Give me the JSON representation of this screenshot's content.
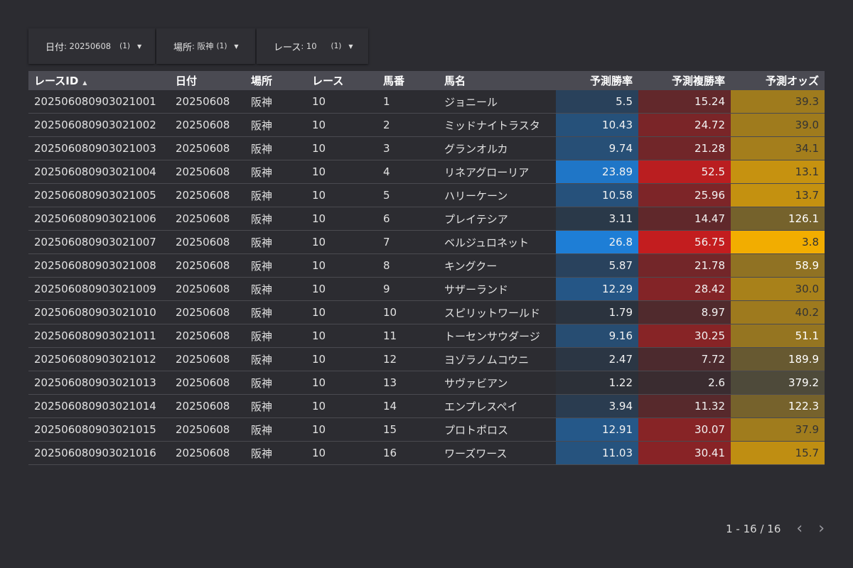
{
  "filters": [
    {
      "label": "日付",
      "value": "20250608",
      "count": "(1)"
    },
    {
      "label": "場所",
      "value": "阪神",
      "count": "(1)"
    },
    {
      "label": "レース",
      "value": "10",
      "count": "(1)"
    }
  ],
  "table": {
    "headers": [
      "レースID",
      "日付",
      "場所",
      "レース",
      "馬番",
      "馬名",
      "予測勝率",
      "予測複勝率",
      "予測オッズ"
    ],
    "sort_indicator": "▲",
    "rows": [
      {
        "id": "202506080903021001",
        "date": "20250608",
        "place": "阪神",
        "race": "10",
        "num": "1",
        "name": "ジョニール",
        "win": "5.5",
        "place_rate": "15.24",
        "odds": "39.3"
      },
      {
        "id": "202506080903021002",
        "date": "20250608",
        "place": "阪神",
        "race": "10",
        "num": "2",
        "name": "ミッドナイトラスタ",
        "win": "10.43",
        "place_rate": "24.72",
        "odds": "39.0"
      },
      {
        "id": "202506080903021003",
        "date": "20250608",
        "place": "阪神",
        "race": "10",
        "num": "3",
        "name": "グランオルカ",
        "win": "9.74",
        "place_rate": "21.28",
        "odds": "34.1"
      },
      {
        "id": "202506080903021004",
        "date": "20250608",
        "place": "阪神",
        "race": "10",
        "num": "4",
        "name": "リネアグローリア",
        "win": "23.89",
        "place_rate": "52.5",
        "odds": "13.1"
      },
      {
        "id": "202506080903021005",
        "date": "20250608",
        "place": "阪神",
        "race": "10",
        "num": "5",
        "name": "ハリーケーン",
        "win": "10.58",
        "place_rate": "25.96",
        "odds": "13.7"
      },
      {
        "id": "202506080903021006",
        "date": "20250608",
        "place": "阪神",
        "race": "10",
        "num": "6",
        "name": "プレイテシア",
        "win": "3.11",
        "place_rate": "14.47",
        "odds": "126.1"
      },
      {
        "id": "202506080903021007",
        "date": "20250608",
        "place": "阪神",
        "race": "10",
        "num": "7",
        "name": "ベルジュロネット",
        "win": "26.8",
        "place_rate": "56.75",
        "odds": "3.8"
      },
      {
        "id": "202506080903021008",
        "date": "20250608",
        "place": "阪神",
        "race": "10",
        "num": "8",
        "name": "キングクー",
        "win": "5.87",
        "place_rate": "21.78",
        "odds": "58.9"
      },
      {
        "id": "202506080903021009",
        "date": "20250608",
        "place": "阪神",
        "race": "10",
        "num": "9",
        "name": "サザーランド",
        "win": "12.29",
        "place_rate": "28.42",
        "odds": "30.0"
      },
      {
        "id": "202506080903021010",
        "date": "20250608",
        "place": "阪神",
        "race": "10",
        "num": "10",
        "name": "スピリットワールド",
        "win": "1.79",
        "place_rate": "8.97",
        "odds": "40.2"
      },
      {
        "id": "202506080903021011",
        "date": "20250608",
        "place": "阪神",
        "race": "10",
        "num": "11",
        "name": "トーセンサウダージ",
        "win": "9.16",
        "place_rate": "30.25",
        "odds": "51.1"
      },
      {
        "id": "202506080903021012",
        "date": "20250608",
        "place": "阪神",
        "race": "10",
        "num": "12",
        "name": "ヨゾラノムコウニ",
        "win": "2.47",
        "place_rate": "7.72",
        "odds": "189.9"
      },
      {
        "id": "202506080903021013",
        "date": "20250608",
        "place": "阪神",
        "race": "10",
        "num": "13",
        "name": "サヴァビアン",
        "win": "1.22",
        "place_rate": "2.6",
        "odds": "379.2"
      },
      {
        "id": "202506080903021014",
        "date": "20250608",
        "place": "阪神",
        "race": "10",
        "num": "14",
        "name": "エンプレスペイ",
        "win": "3.94",
        "place_rate": "11.32",
        "odds": "122.3"
      },
      {
        "id": "202506080903021015",
        "date": "20250608",
        "place": "阪神",
        "race": "10",
        "num": "15",
        "name": "プロトポロス",
        "win": "12.91",
        "place_rate": "30.07",
        "odds": "37.9"
      },
      {
        "id": "202506080903021016",
        "date": "20250608",
        "place": "阪神",
        "race": "10",
        "num": "16",
        "name": "ワーズワース",
        "win": "11.03",
        "place_rate": "30.41",
        "odds": "15.7"
      }
    ]
  },
  "colors": {
    "win_scale": [
      "#2c3038",
      "#1e7ed6"
    ],
    "place_scale": [
      "#3a2c30",
      "#c31d1f"
    ],
    "odds_scale": [
      "#f2ad00",
      "#4e4a3a"
    ]
  },
  "pagination": {
    "range": "1 - 16 / 16",
    "prev_icon": "chevron-left-icon",
    "next_icon": "chevron-right-icon"
  }
}
